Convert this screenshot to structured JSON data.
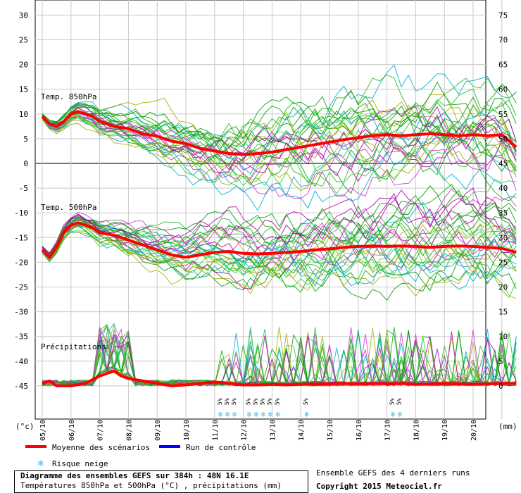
{
  "colors": {
    "mean": "#ff0000",
    "control": "#0000ff",
    "snow": "#4db8e8",
    "members": [
      "#00aa00",
      "#22bb22",
      "#009900",
      "#aa00aa",
      "#00aacc",
      "#aaaa00",
      "#33cc33",
      "#cc33cc"
    ]
  },
  "labels": {
    "temp850": "Temp. 850hPa",
    "temp500": "Temp. 500hPa",
    "precip": "Précipitations",
    "unit_left": "(°c)",
    "unit_right": "(mm)"
  },
  "legend": {
    "mean": "Moyenne des scénarios",
    "control": "Run de contrôle",
    "snow": "Risque neige",
    "runs": "Ensemble GEFS des 4 derniers runs"
  },
  "title": {
    "line1": "Diagramme des ensembles GEFS sur 384h : 48N 16.1E",
    "line2": "Températures 850hPa et 500hPa (°C) , précipitations (mm)"
  },
  "copyright": "Copyright 2015 Meteociel.fr",
  "snow_risk": {
    "label": "5%",
    "dates": [
      "11/10",
      "11/10",
      "11/10",
      "12/10",
      "12/10",
      "12/10",
      "12/10",
      "13/10",
      "14/10",
      "17/10",
      "17/10"
    ]
  },
  "chart_data": {
    "type": "line",
    "x_dates": [
      "05/10",
      "06/10",
      "07/10",
      "08/10",
      "09/10",
      "10/10",
      "11/10",
      "12/10",
      "13/10",
      "14/10",
      "15/10",
      "16/10",
      "17/10",
      "18/10",
      "19/10",
      "20/10"
    ],
    "y_left_ticks": [
      30,
      25,
      20,
      15,
      10,
      5,
      0,
      -5,
      -10,
      -15,
      -20,
      -25,
      -30,
      -35,
      -40,
      -45
    ],
    "y_right_ticks": [
      75,
      70,
      65,
      60,
      55,
      50,
      45,
      40,
      35,
      30,
      25,
      20,
      15,
      10,
      5,
      0
    ],
    "y_left_range": [
      -50,
      30
    ],
    "x_range_days": [
      0,
      16.5
    ],
    "grid": true,
    "series": [
      {
        "name": "Moyenne des scénarios",
        "variable": "Temp. 850hPa",
        "x_days": [
          0,
          0.25,
          0.5,
          0.75,
          1,
          1.25,
          1.5,
          1.75,
          2,
          2.5,
          3,
          3.5,
          4,
          4.5,
          5,
          5.5,
          6,
          6.5,
          7,
          7.5,
          8,
          8.5,
          9,
          9.5,
          10,
          10.5,
          11,
          11.5,
          12,
          12.5,
          13,
          13.5,
          14,
          14.5,
          15,
          15.5,
          16,
          16.5
        ],
        "values": [
          9.5,
          8,
          7.5,
          8.5,
          10,
          10.5,
          10,
          9.5,
          8.5,
          7.5,
          7,
          6,
          5.5,
          4.5,
          4,
          3,
          2.5,
          2,
          1.8,
          2,
          2.3,
          2.8,
          3.3,
          3.8,
          4.3,
          4.8,
          5.2,
          5.6,
          5.8,
          5.6,
          5.8,
          6,
          5.8,
          5.6,
          5.8,
          5.6,
          5.8,
          3.3
        ]
      },
      {
        "name": "Moyenne des scénarios",
        "variable": "Temp. 500hPa",
        "x_days": [
          0,
          0.25,
          0.5,
          0.75,
          1,
          1.25,
          1.5,
          1.75,
          2,
          2.5,
          3,
          3.5,
          4,
          4.5,
          5,
          5.5,
          6,
          6.5,
          7,
          7.5,
          8,
          8.5,
          9,
          9.5,
          10,
          10.5,
          11,
          11.5,
          12,
          12.5,
          13,
          13.5,
          14,
          14.5,
          15,
          15.5,
          16,
          16.5
        ],
        "values": [
          -17.5,
          -19,
          -17,
          -14,
          -12.5,
          -12,
          -12.5,
          -13,
          -14,
          -14.5,
          -15.5,
          -16.5,
          -17.5,
          -18.5,
          -19,
          -18.5,
          -18,
          -17.8,
          -18.2,
          -18.3,
          -18.2,
          -18,
          -17.8,
          -17.5,
          -17.3,
          -17,
          -16.8,
          -16.7,
          -16.8,
          -16.7,
          -16.8,
          -17,
          -16.8,
          -16.7,
          -16.8,
          -17,
          -17.2,
          -18
        ]
      },
      {
        "name": "Moyenne des scénarios",
        "variable": "Précipitations",
        "x_days": [
          0,
          0.25,
          0.5,
          0.75,
          1,
          1.5,
          2,
          2.25,
          2.5,
          2.75,
          3,
          3.5,
          4,
          4.5,
          5,
          5.5,
          6,
          6.5,
          7,
          7.5,
          8,
          8.5,
          9,
          9.5,
          10,
          10.5,
          11,
          11.5,
          12,
          12.5,
          13,
          13.5,
          14,
          14.5,
          15,
          15.5,
          16,
          16.5
        ],
        "values": [
          -44.5,
          -44,
          -45,
          -45,
          -45,
          -44.5,
          -43,
          -42.5,
          -42,
          -43,
          -43.5,
          -44,
          -44.5,
          -45,
          -44.8,
          -44.5,
          -44.2,
          -44.5,
          -44.8,
          -44.8,
          -44.7,
          -44.8,
          -44.7,
          -44.6,
          -44.6,
          -44.5,
          -44.6,
          -44.5,
          -44.6,
          -44.5,
          -44.7,
          -44.6,
          -44.5,
          -44.6,
          -44.7,
          -44.6,
          -44.5,
          -44.5
        ]
      }
    ],
    "member_count": 30
  }
}
